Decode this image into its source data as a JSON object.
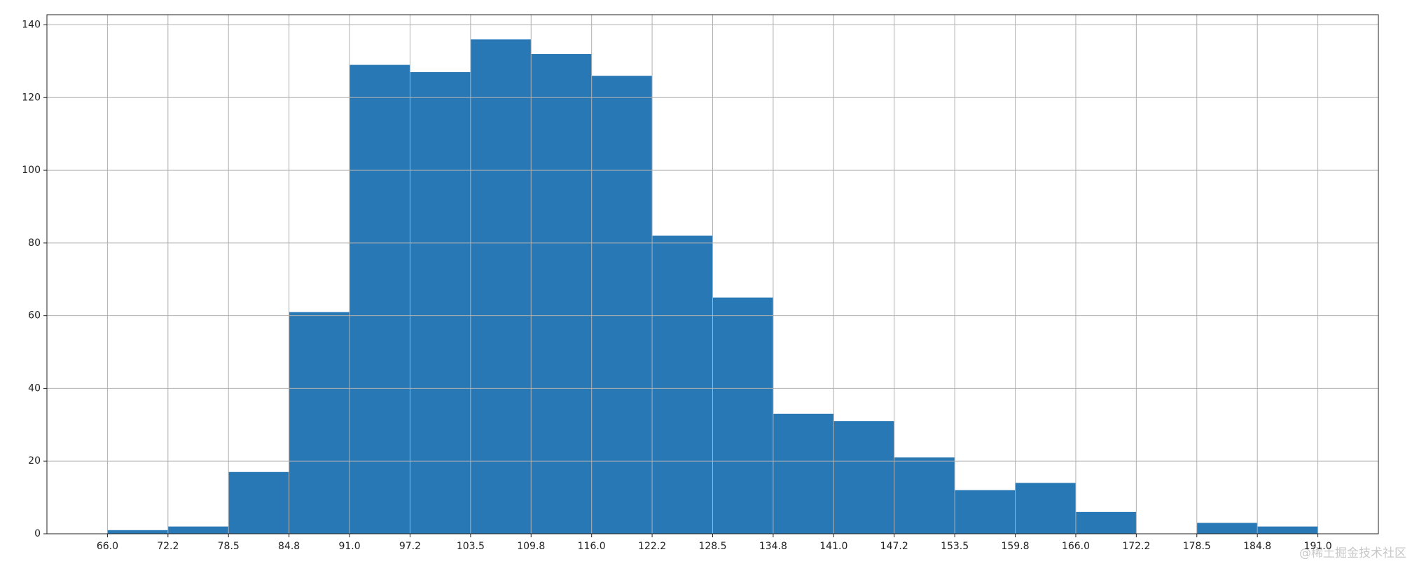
{
  "chart_data": {
    "type": "histogram",
    "bins": [
      66,
      72.25,
      78.5,
      84.75,
      91,
      97.25,
      103.5,
      109.75,
      116,
      122.25,
      128.5,
      134.75,
      141,
      147.25,
      153.5,
      159.75,
      166,
      172.25,
      178.5,
      184.75,
      191
    ],
    "values": [
      1,
      2,
      17,
      61,
      129,
      127,
      136,
      132,
      126,
      82,
      65,
      33,
      31,
      21,
      12,
      14,
      6,
      0,
      3,
      2
    ],
    "color": "#2878b5",
    "xlim": [
      59.75,
      197.25
    ],
    "xticks": [
      {
        "value": 66,
        "label": "66.0"
      },
      {
        "value": 72.25,
        "label": "72.2"
      },
      {
        "value": 78.5,
        "label": "78.5"
      },
      {
        "value": 84.75,
        "label": "84.8"
      },
      {
        "value": 91,
        "label": "91.0"
      },
      {
        "value": 97.25,
        "label": "97.2"
      },
      {
        "value": 103.5,
        "label": "103.5"
      },
      {
        "value": 109.75,
        "label": "109.8"
      },
      {
        "value": 116,
        "label": "116.0"
      },
      {
        "value": 122.25,
        "label": "122.2"
      },
      {
        "value": 128.5,
        "label": "128.5"
      },
      {
        "value": 134.75,
        "label": "134.8"
      },
      {
        "value": 141,
        "label": "141.0"
      },
      {
        "value": 147.25,
        "label": "147.2"
      },
      {
        "value": 153.5,
        "label": "153.5"
      },
      {
        "value": 159.75,
        "label": "159.8"
      },
      {
        "value": 166,
        "label": "166.0"
      },
      {
        "value": 172.25,
        "label": "172.2"
      },
      {
        "value": 178.5,
        "label": "178.5"
      },
      {
        "value": 184.75,
        "label": "184.8"
      },
      {
        "value": 191,
        "label": "191.0"
      }
    ],
    "ylim": [
      0,
      142.8
    ],
    "yticks": [
      0,
      20,
      40,
      60,
      80,
      100,
      120,
      140
    ],
    "grid": true,
    "watermark": "@稀土掘金技术社区"
  }
}
